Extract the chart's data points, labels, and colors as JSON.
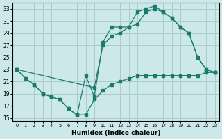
{
  "xlabel": "Humidex (Indice chaleur)",
  "bg_color": "#cce8e8",
  "grid_color": "#aacccc",
  "line_color": "#1a7a6e",
  "xlim": [
    -0.5,
    23.5
  ],
  "ylim": [
    14.5,
    34
  ],
  "yticks": [
    15,
    17,
    19,
    21,
    23,
    25,
    27,
    29,
    31,
    33
  ],
  "xticks": [
    0,
    1,
    2,
    3,
    4,
    5,
    6,
    7,
    8,
    9,
    10,
    11,
    12,
    13,
    14,
    15,
    16,
    17,
    18,
    19,
    20,
    21,
    22,
    23
  ],
  "lineA_x": [
    0,
    1,
    2,
    3,
    4,
    5,
    6,
    7,
    8,
    9,
    10,
    11,
    12,
    13,
    14,
    15,
    16,
    17,
    18,
    19,
    20,
    21,
    22,
    23
  ],
  "lineA_y": [
    23,
    21.5,
    20.5,
    19,
    18.5,
    18,
    16.5,
    15.5,
    15.5,
    18,
    19.5,
    20.5,
    21,
    21.5,
    22,
    22,
    22,
    22,
    22,
    22,
    22,
    22,
    22.5,
    22.5
  ],
  "lineB_x": [
    0,
    1,
    2,
    3,
    4,
    5,
    6,
    7,
    8,
    9,
    10,
    11,
    12,
    13,
    14,
    15,
    16,
    17,
    18,
    19,
    20,
    21,
    22,
    23
  ],
  "lineB_y": [
    23,
    21.5,
    20.5,
    19,
    18.5,
    18,
    16.5,
    15.5,
    22,
    18.5,
    27.5,
    30,
    30,
    30,
    32.5,
    33,
    33.5,
    32.5,
    31.5,
    30,
    29,
    25,
    23,
    22.5
  ],
  "lineC_x": [
    0,
    9,
    10,
    11,
    12,
    13,
    14,
    15,
    16,
    17,
    18,
    19,
    20,
    21,
    22,
    23
  ],
  "lineC_y": [
    23,
    20,
    27,
    28.5,
    29,
    30,
    30.5,
    32.5,
    33,
    32.5,
    31.5,
    30,
    29,
    25,
    23,
    22.5
  ]
}
